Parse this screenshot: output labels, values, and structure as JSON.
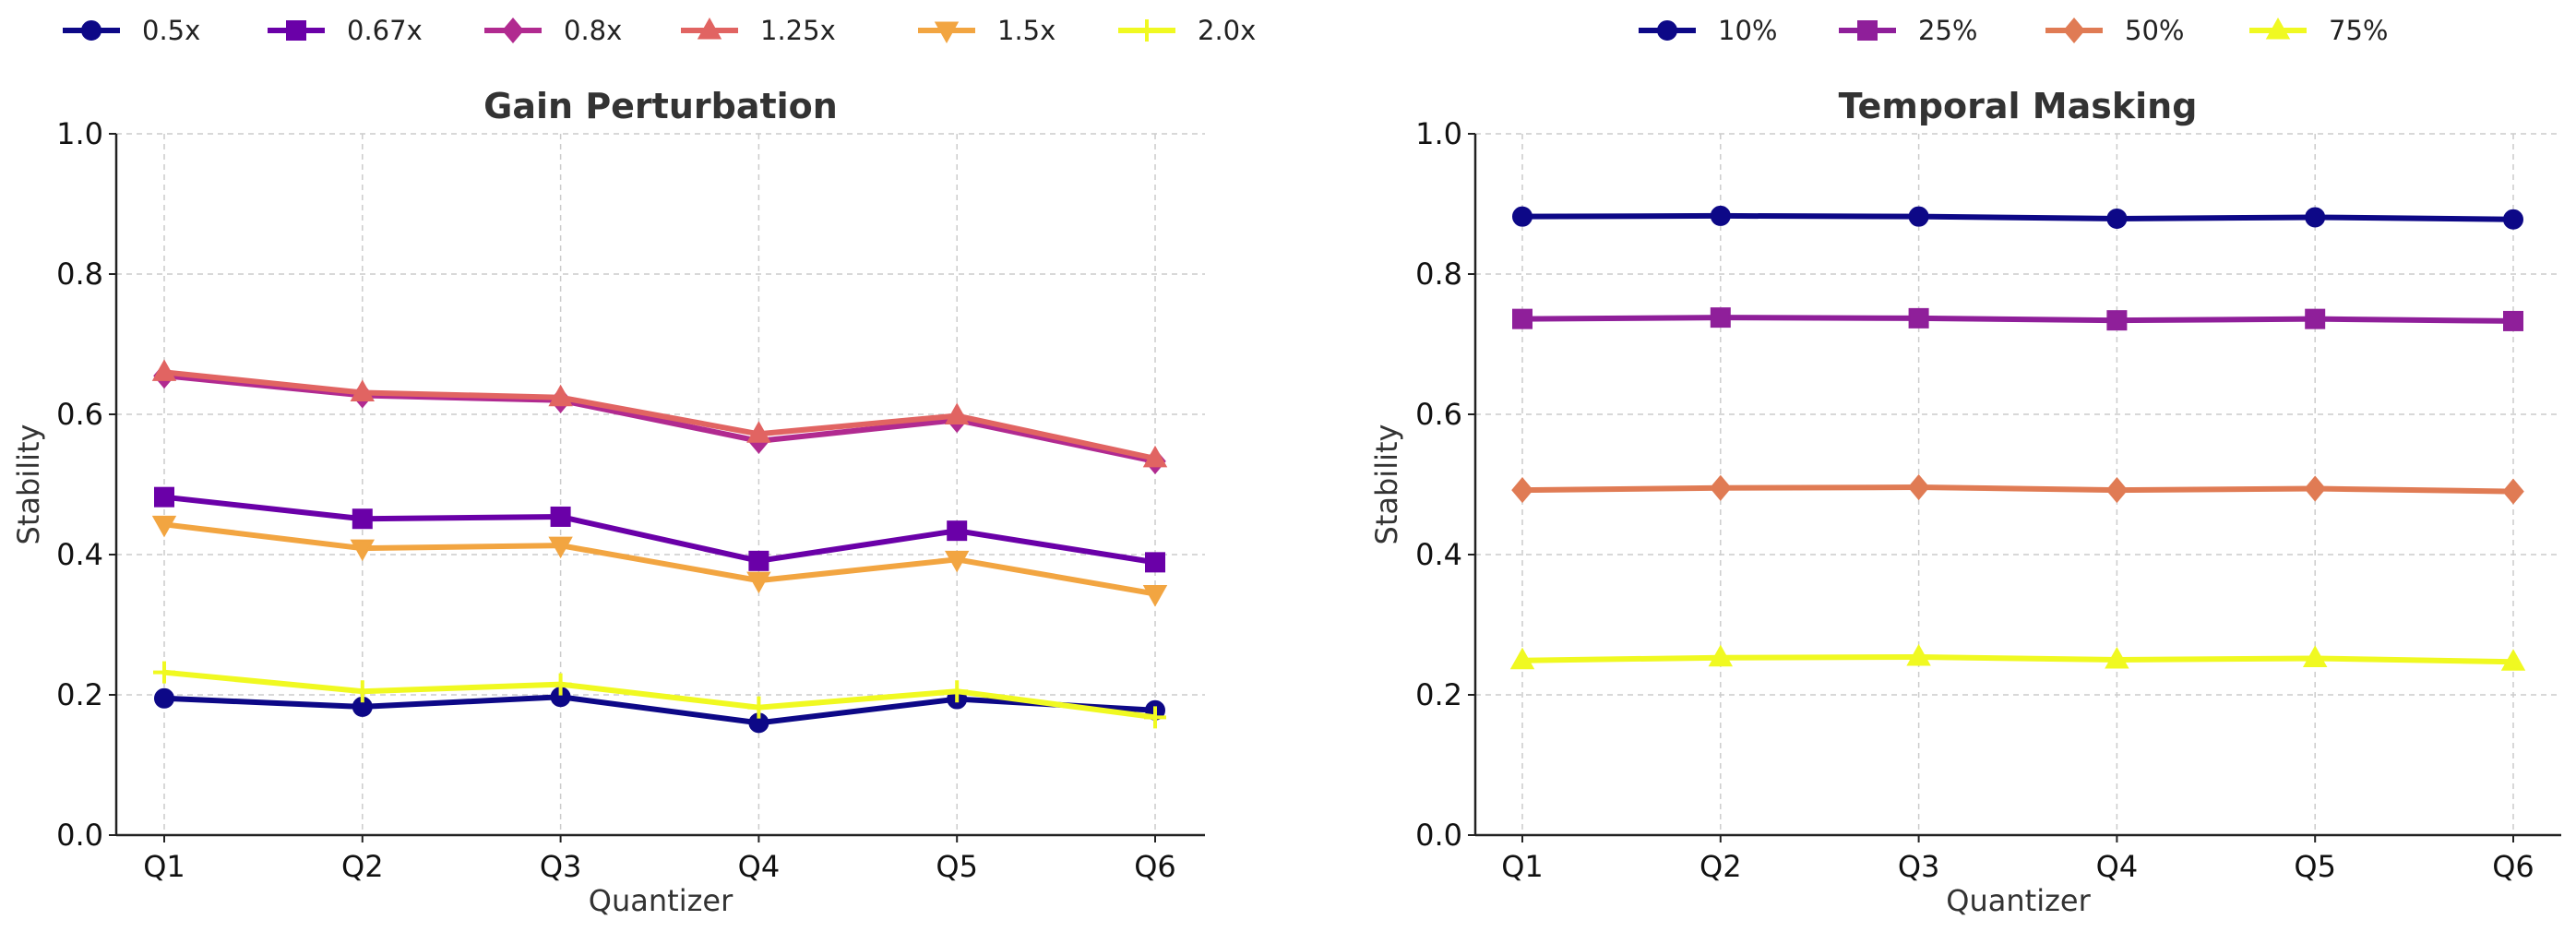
{
  "chart_data": [
    {
      "type": "line",
      "title": "Gain Perturbation",
      "xlabel": "Quantizer",
      "ylabel": "Stability",
      "ylim": [
        0,
        1.0
      ],
      "yticks": [
        "0.0",
        "0.2",
        "0.4",
        "0.6",
        "0.8",
        "1.0"
      ],
      "grid": true,
      "legend_position": "top",
      "categories": [
        "Q1",
        "Q2",
        "Q3",
        "Q4",
        "Q5",
        "Q6"
      ],
      "series": [
        {
          "name": "0.5x",
          "color": "#0d0887",
          "marker": "circle",
          "values": [
            0.195,
            0.183,
            0.197,
            0.16,
            0.194,
            0.178
          ]
        },
        {
          "name": "0.67x",
          "color": "#6a00a8",
          "marker": "square",
          "values": [
            0.482,
            0.451,
            0.454,
            0.391,
            0.434,
            0.389
          ]
        },
        {
          "name": "0.8x",
          "color": "#b12a90",
          "marker": "diamond",
          "values": [
            0.655,
            0.627,
            0.62,
            0.562,
            0.592,
            0.533
          ]
        },
        {
          "name": "1.25x",
          "color": "#e16462",
          "marker": "triangle-up",
          "values": [
            0.66,
            0.631,
            0.624,
            0.572,
            0.598,
            0.537
          ]
        },
        {
          "name": "1.5x",
          "color": "#f2a541",
          "marker": "triangle-down",
          "values": [
            0.443,
            0.409,
            0.413,
            0.363,
            0.393,
            0.344
          ]
        },
        {
          "name": "2.0x",
          "color": "#f0f921",
          "marker": "plus",
          "values": [
            0.232,
            0.205,
            0.215,
            0.182,
            0.205,
            0.168
          ]
        }
      ]
    },
    {
      "type": "line",
      "title": "Temporal Masking",
      "xlabel": "Quantizer",
      "ylabel": "Stability",
      "ylim": [
        0,
        1.0
      ],
      "yticks": [
        "0.0",
        "0.2",
        "0.4",
        "0.6",
        "0.8",
        "1.0"
      ],
      "grid": true,
      "legend_position": "top",
      "categories": [
        "Q1",
        "Q2",
        "Q3",
        "Q4",
        "Q5",
        "Q6"
      ],
      "series": [
        {
          "name": "10%",
          "color": "#0d0887",
          "marker": "circle",
          "values": [
            0.882,
            0.883,
            0.882,
            0.879,
            0.881,
            0.878
          ]
        },
        {
          "name": "25%",
          "color": "#8f1f9a",
          "marker": "square",
          "values": [
            0.736,
            0.738,
            0.737,
            0.734,
            0.736,
            0.733
          ]
        },
        {
          "name": "50%",
          "color": "#e07b54",
          "marker": "diamond",
          "values": [
            0.492,
            0.495,
            0.496,
            0.492,
            0.494,
            0.49
          ]
        },
        {
          "name": "75%",
          "color": "#f0f921",
          "marker": "triangle-up",
          "values": [
            0.249,
            0.253,
            0.254,
            0.25,
            0.252,
            0.247
          ]
        }
      ]
    }
  ]
}
